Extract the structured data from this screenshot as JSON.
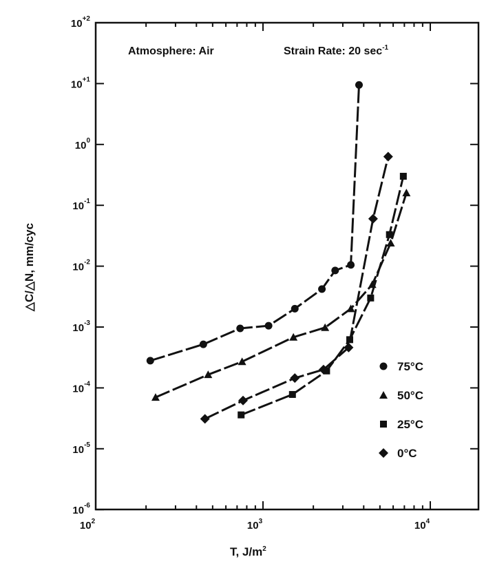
{
  "chart_data": {
    "type": "scatter",
    "title": "",
    "xlabel": "T, J/m",
    "xlabel_sup": "2",
    "ylabel": "△C/△N, mm/cyc",
    "xscale": "log",
    "yscale": "log",
    "xlim": [
      100,
      20000
    ],
    "ylim": [
      1e-06,
      100
    ],
    "x_ticks": [
      {
        "value": 100,
        "base": "10",
        "exp": "2"
      },
      {
        "value": 1000,
        "base": "10",
        "exp": "3"
      },
      {
        "value": 10000,
        "base": "10",
        "exp": "4"
      }
    ],
    "y_ticks": [
      {
        "value": 100,
        "base": "10",
        "exp": "+2"
      },
      {
        "value": 10,
        "base": "10",
        "exp": "+1"
      },
      {
        "value": 1,
        "base": "10",
        "exp": "0"
      },
      {
        "value": 0.1,
        "base": "10",
        "exp": "-1"
      },
      {
        "value": 0.01,
        "base": "10",
        "exp": "-2"
      },
      {
        "value": 0.001,
        "base": "10",
        "exp": "-3"
      },
      {
        "value": 0.0001,
        "base": "10",
        "exp": "-4"
      },
      {
        "value": 1e-05,
        "base": "10",
        "exp": "-5"
      },
      {
        "value": 1e-06,
        "base": "10",
        "exp": "-6"
      }
    ],
    "annotations": {
      "atmosphere": "Atmosphere: Air",
      "strain_rate": "Strain Rate: 20 sec",
      "strain_rate_sup": "-1"
    },
    "legend_position": "lower-right",
    "series": [
      {
        "name": "75°C",
        "marker": "circle",
        "x": [
          212,
          440,
          730,
          1080,
          1550,
          2250,
          2700,
          3350,
          3750
        ],
        "y": [
          0.00028,
          0.00052,
          0.00095,
          0.00105,
          0.002,
          0.0042,
          0.0085,
          0.0105,
          9.5
        ]
      },
      {
        "name": "50°C",
        "marker": "triangle",
        "x": [
          228,
          470,
          750,
          1520,
          2350,
          3350,
          4500,
          5800,
          7200
        ],
        "y": [
          7e-05,
          0.000165,
          0.00027,
          0.00068,
          0.00098,
          0.002,
          0.005,
          0.024,
          0.16
        ]
      },
      {
        "name": "25°C",
        "marker": "square",
        "x": [
          740,
          1500,
          2400,
          3300,
          4400,
          5700,
          6900
        ],
        "y": [
          3.6e-05,
          7.8e-05,
          0.00019,
          0.00062,
          0.003,
          0.033,
          0.3
        ]
      },
      {
        "name": "0°C",
        "marker": "diamond",
        "x": [
          450,
          760,
          1550,
          2300,
          3250,
          4550,
          5600
        ],
        "y": [
          3.1e-05,
          6.2e-05,
          0.000145,
          0.0002,
          0.00046,
          0.06,
          0.63
        ]
      }
    ]
  }
}
